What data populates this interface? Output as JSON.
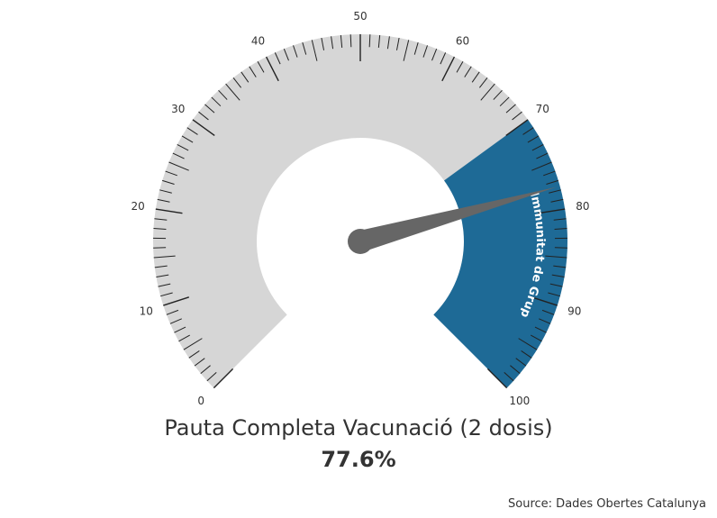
{
  "chart_data": {
    "type": "gauge",
    "title": "Pauta Completa Vacunació (2 dosis)",
    "value": 77.6,
    "value_label": "77.6%",
    "range": [
      0,
      100
    ],
    "major_tick_labels": [
      "0",
      "10",
      "20",
      "30",
      "40",
      "50",
      "60",
      "70",
      "80",
      "90",
      "100"
    ],
    "band": {
      "from": 70,
      "to": 100,
      "label": "Immunitat de Grup",
      "color": "#1e6a96"
    },
    "track_color": "#d6d6d6",
    "needle_color": "#666666",
    "source": "Source: Dades Obertes Catalunya"
  }
}
